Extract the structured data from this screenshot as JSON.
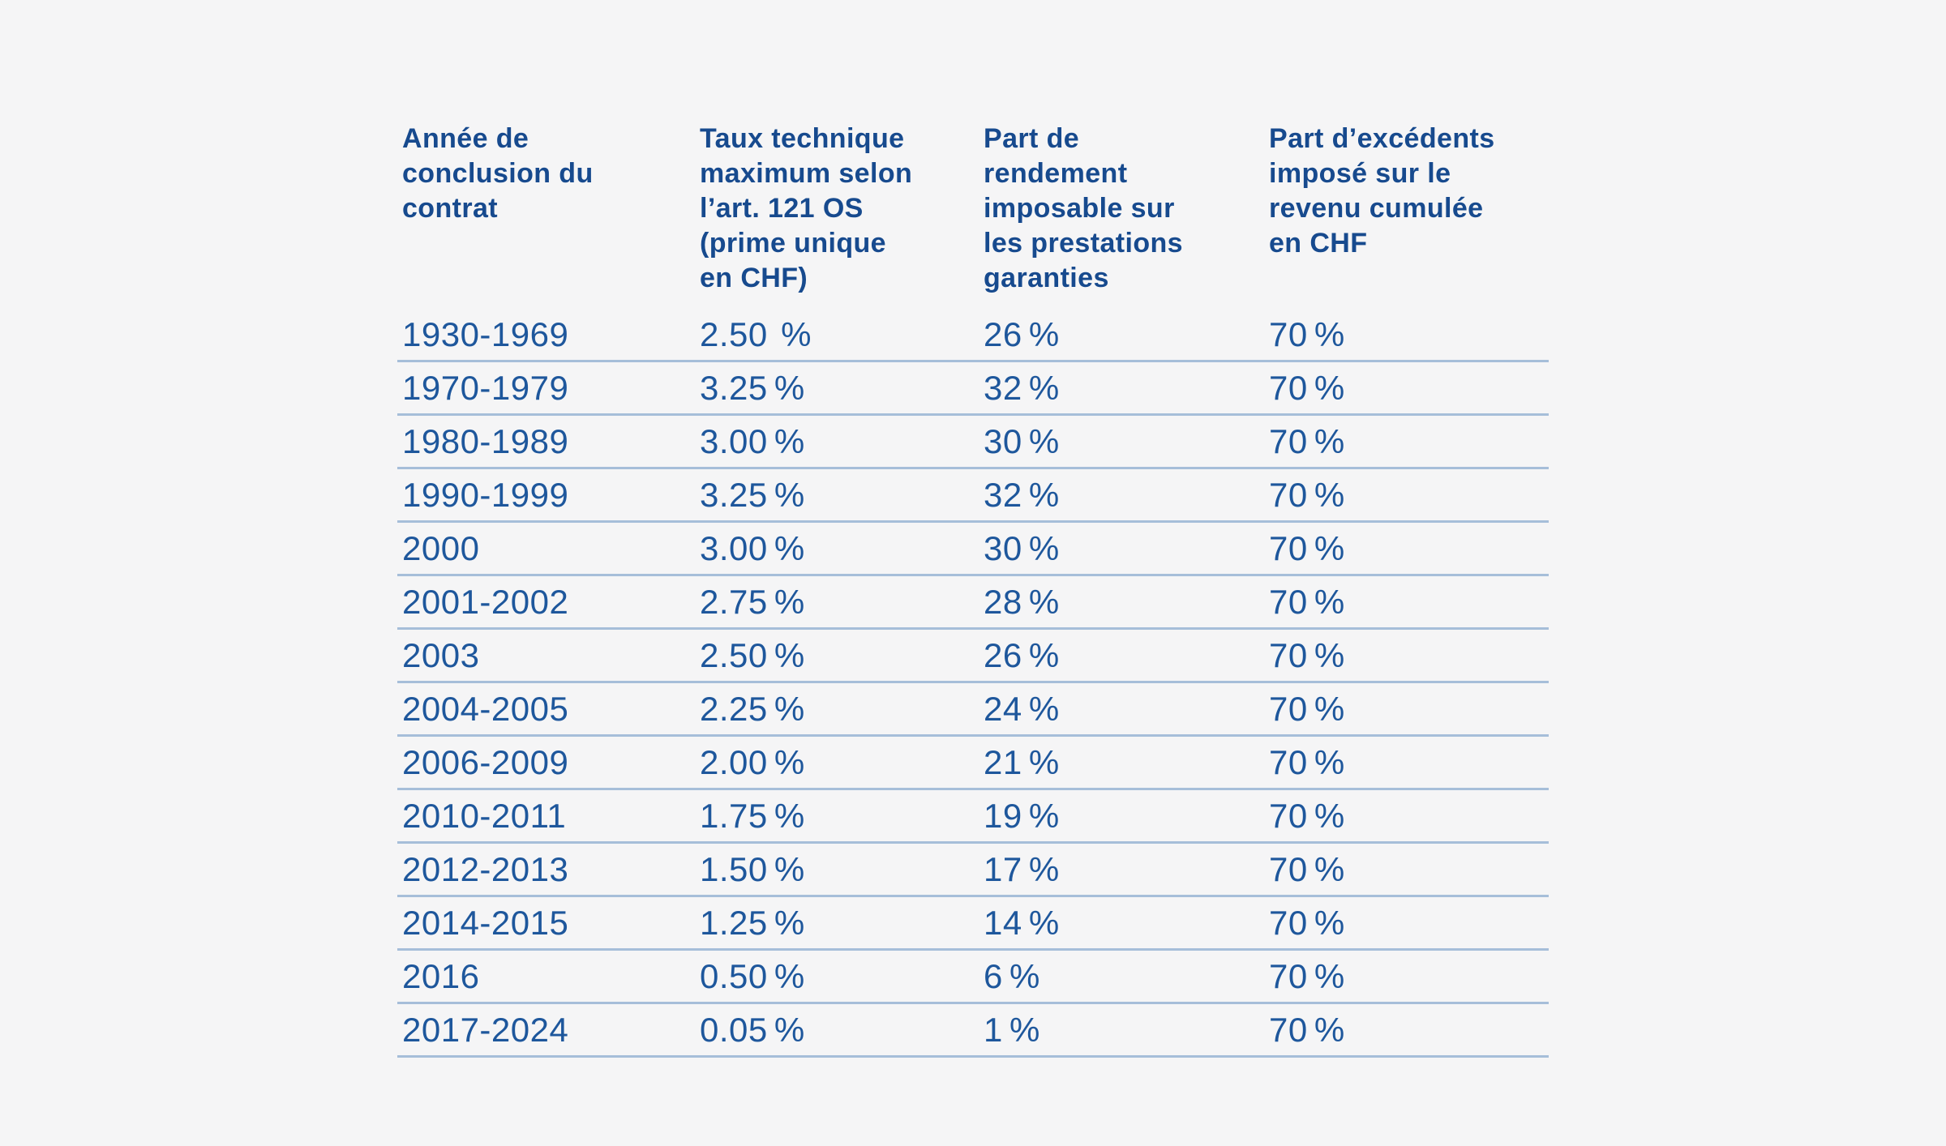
{
  "background_color": "#f5f5f6",
  "colors": {
    "header_text": "#174a8e",
    "body_text": "#1e579c",
    "divider": "#a6bed9"
  },
  "table": {
    "columns": [
      {
        "id": "annee",
        "label": "Année de\nconclusion du\ncontrat"
      },
      {
        "id": "taux",
        "label": "Taux technique\nmaximum selon\nl’art. 121 OS\n(prime unique\nen CHF)"
      },
      {
        "id": "part_rendement",
        "label": "Part de\nrendement\nimposable sur\nles prestations\ngaranties"
      },
      {
        "id": "part_excedents",
        "label": "Part d’excédents\nimposé sur le\nrevenu cumulée\nen CHF"
      }
    ],
    "rows": [
      [
        "1930-1969",
        "2.50  %",
        "26 %",
        "70 %"
      ],
      [
        "1970-1979",
        "3.25 %",
        "32 %",
        "70 %"
      ],
      [
        "1980-1989",
        "3.00 %",
        "30 %",
        "70 %"
      ],
      [
        "1990-1999",
        "3.25 %",
        "32 %",
        "70 %"
      ],
      [
        "2000",
        "3.00 %",
        "30 %",
        "70 %"
      ],
      [
        "2001-2002",
        "2.75 %",
        "28 %",
        "70 %"
      ],
      [
        "2003",
        "2.50 %",
        "26 %",
        "70 %"
      ],
      [
        "2004-2005",
        "2.25 %",
        "24 %",
        "70 %"
      ],
      [
        "2006-2009",
        "2.00 %",
        "21 %",
        "70 %"
      ],
      [
        "2010-2011",
        "1.75 %",
        "19 %",
        "70 %"
      ],
      [
        "2012-2013",
        "1.50 %",
        "17 %",
        "70 %"
      ],
      [
        "2014-2015",
        "1.25 %",
        "14 %",
        "70 %"
      ],
      [
        "2016",
        "0.50 %",
        "6 %",
        "70 %"
      ],
      [
        "2017-2024",
        "0.05 %",
        "1 %",
        "70 %"
      ]
    ]
  }
}
